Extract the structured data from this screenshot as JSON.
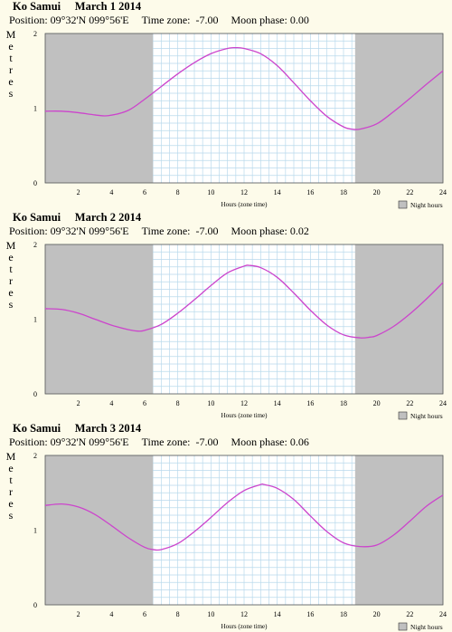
{
  "colors": {
    "background": "#fdfbea",
    "night_shade": "#c0c0c0",
    "grid": "#b9d9ec",
    "curve": "#cc44cc",
    "axis": "#555555"
  },
  "chart_data": [
    {
      "type": "line",
      "title": "Ko Samui",
      "date": "March 1 2014",
      "position": "Position: 09°32'N 099°56'E",
      "timezone": "Time zone:  -7.00",
      "moon_phase": "Moon phase: 0.00",
      "ylabel": "Metres",
      "xlabel": "Hours (zone time)",
      "legend": "Night hours",
      "legend_position": "bottom-right",
      "grid": true,
      "xlim": [
        0,
        24
      ],
      "ylim": [
        0,
        2
      ],
      "x_ticks": [
        "2",
        "4",
        "6",
        "8",
        "10",
        "12",
        "14",
        "16",
        "18",
        "20",
        "22",
        "24"
      ],
      "y_ticks": [
        "0",
        "1",
        "2"
      ],
      "night_hours": [
        [
          0,
          6.5
        ],
        [
          18.7,
          24
        ]
      ],
      "series": [
        {
          "x": [
            0,
            1,
            2,
            3,
            3.8,
            5,
            6,
            7,
            8,
            9,
            10,
            11,
            11.5,
            12,
            13,
            14,
            15,
            16,
            17,
            18,
            18.5,
            19,
            20,
            21,
            22,
            23,
            24
          ],
          "values": [
            0.96,
            0.96,
            0.94,
            0.91,
            0.9,
            0.97,
            1.12,
            1.29,
            1.46,
            1.61,
            1.73,
            1.8,
            1.81,
            1.8,
            1.73,
            1.57,
            1.34,
            1.1,
            0.89,
            0.75,
            0.72,
            0.72,
            0.79,
            0.95,
            1.13,
            1.32,
            1.5
          ]
        }
      ]
    },
    {
      "type": "line",
      "title": "Ko Samui",
      "date": "March 2 2014",
      "position": "Position: 09°32'N 099°56'E",
      "timezone": "Time zone:  -7.00",
      "moon_phase": "Moon phase: 0.02",
      "ylabel": "Metres",
      "xlabel": "Hours (zone time)",
      "legend": "Night hours",
      "legend_position": "bottom-right",
      "grid": true,
      "xlim": [
        0,
        24
      ],
      "ylim": [
        0,
        2
      ],
      "x_ticks": [
        "2",
        "4",
        "6",
        "8",
        "10",
        "12",
        "14",
        "16",
        "18",
        "20",
        "22",
        "24"
      ],
      "y_ticks": [
        "0",
        "1",
        "2"
      ],
      "night_hours": [
        [
          0,
          6.5
        ],
        [
          18.7,
          24
        ]
      ],
      "series": [
        {
          "x": [
            0,
            1,
            2,
            3,
            4,
            5,
            5.6,
            6,
            7,
            8,
            9,
            10,
            11,
            12,
            12.3,
            13,
            14,
            15,
            16,
            17,
            18,
            19,
            19.6,
            20,
            21,
            22,
            23,
            24
          ],
          "values": [
            1.14,
            1.13,
            1.08,
            1.0,
            0.92,
            0.86,
            0.84,
            0.85,
            0.93,
            1.08,
            1.26,
            1.45,
            1.62,
            1.71,
            1.72,
            1.69,
            1.56,
            1.35,
            1.12,
            0.92,
            0.79,
            0.75,
            0.76,
            0.78,
            0.9,
            1.07,
            1.27,
            1.49
          ]
        }
      ]
    },
    {
      "type": "line",
      "title": "Ko Samui",
      "date": "March 3 2014",
      "position": "Position: 09°32'N 099°56'E",
      "timezone": "Time zone:  -7.00",
      "moon_phase": "Moon phase: 0.06",
      "ylabel": "Metres",
      "xlabel": "Hours (zone time)",
      "legend": "Night hours",
      "legend_position": "bottom-right",
      "grid": true,
      "xlim": [
        0,
        24
      ],
      "ylim": [
        0,
        2
      ],
      "x_ticks": [
        "2",
        "4",
        "6",
        "8",
        "10",
        "12",
        "14",
        "16",
        "18",
        "20",
        "22",
        "24"
      ],
      "y_ticks": [
        "0",
        "1",
        "2"
      ],
      "night_hours": [
        [
          0,
          6.5
        ],
        [
          18.7,
          24
        ]
      ],
      "series": [
        {
          "x": [
            0,
            1,
            2,
            3,
            4,
            5,
            6,
            6.5,
            7,
            8,
            9,
            10,
            11,
            12,
            13,
            13.2,
            14,
            15,
            16,
            17,
            18,
            19,
            20,
            21,
            22,
            23,
            24
          ],
          "values": [
            1.33,
            1.35,
            1.31,
            1.21,
            1.06,
            0.9,
            0.77,
            0.74,
            0.74,
            0.82,
            0.98,
            1.17,
            1.37,
            1.53,
            1.61,
            1.61,
            1.56,
            1.41,
            1.19,
            0.98,
            0.83,
            0.78,
            0.8,
            0.93,
            1.12,
            1.32,
            1.47
          ]
        }
      ]
    }
  ]
}
